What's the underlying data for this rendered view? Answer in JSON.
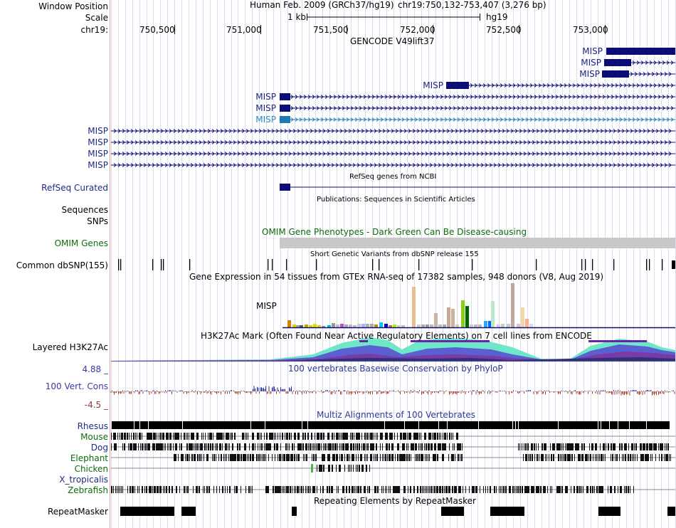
{
  "header": {
    "window_position_label": "Window Position",
    "scale_label": "Scale",
    "chrom_label": "chr19:",
    "assembly": "Human Feb. 2009 (GRCh37/hg19)",
    "position": "chr19:750,132-753,407 (3,276 bp)",
    "scale_text": "1 kb",
    "db": "hg19",
    "positions": [
      "750,500",
      "751,000",
      "751,500",
      "752,000",
      "752,500",
      "753,000"
    ]
  },
  "window": {
    "start": 750132,
    "end": 753407
  },
  "gencode": {
    "title": "GENCODE V49lift37",
    "genes": [
      "MISP",
      "MISP",
      "MISP",
      "MISP",
      "MISP",
      "MISP",
      "MISP",
      "MISP",
      "MISP",
      "MISP",
      "MISP"
    ]
  },
  "refseq": {
    "title": "RefSeq genes from NCBI",
    "label": "RefSeq Curated"
  },
  "publications": {
    "title": "Publications: Sequences in Scientific Articles",
    "sequences_label": "Sequences",
    "snps_label": "SNPs"
  },
  "omim": {
    "title": "OMIM Gene Phenotypes - Dark Green Can Be Disease-causing",
    "label": "OMIM Genes"
  },
  "dbsnp": {
    "title": "Short Genetic Variants from dbSNP release 155",
    "label": "Common dbSNP(155)"
  },
  "gtex": {
    "title": "Gene Expression in 54 tissues from GTEx RNA-seq of 17382 samples, 948 donors (V8, Aug 2019)",
    "gene": "MISP"
  },
  "h3k27ac": {
    "title": "H3K27Ac Mark (Often Found Near Active Regulatory Elements) on 7 cell lines from ENCODE",
    "label": "Layered H3K27Ac"
  },
  "conservation": {
    "title": "100 vertebrates Basewise Conservation by PhyloP",
    "label": "100 Vert. Cons",
    "max": "4.88 _",
    "min": "-4.5 _"
  },
  "multiz": {
    "title": "Multiz Alignments of 100 Vertebrates",
    "species": [
      "Rhesus",
      "Mouse",
      "Dog",
      "Elephant",
      "Chicken",
      "X_tropicalis",
      "Zebrafish"
    ]
  },
  "repeatmasker": {
    "title": "Repeating Elements by RepeatMasker",
    "label": "RepeatMasker"
  },
  "colors": {
    "gene": "#0c0c78",
    "gene_light": "#1e7ab4",
    "omim_bar": "#c8c8c8",
    "grid": "#dcdcf0"
  }
}
